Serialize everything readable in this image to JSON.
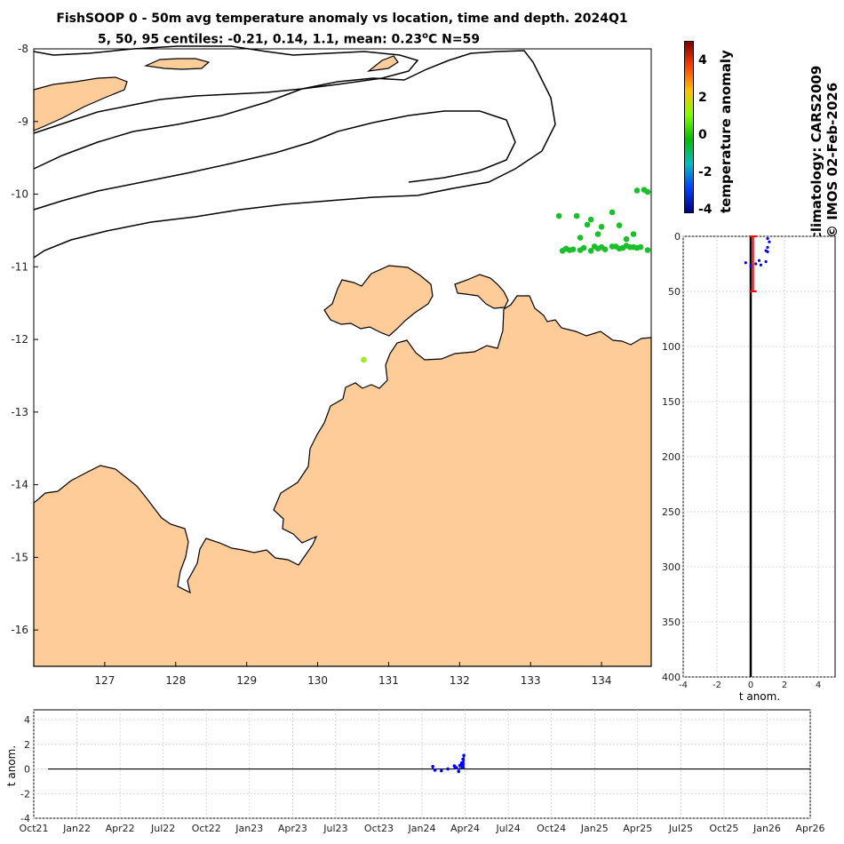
{
  "title": {
    "line1": "FishSOOP 0 - 50m avg temperature anomaly vs location, time and depth. 2024Q1",
    "line2_prefix": "5, 50, 95 centiles: -0.21, 0.14, 1.1, mean: 0.23",
    "line2_degree": "o",
    "line2_suffix": "C N=59"
  },
  "side_text": {
    "climatology": "climatology: CARS2009",
    "credit": "© IMOS 02-Feb-2026"
  },
  "colorbar": {
    "label": "temperature anomaly",
    "ticks": [
      "4",
      "2",
      "0",
      "-2",
      "-4"
    ],
    "colors": [
      "#800000",
      "#ff4000",
      "#ffc000",
      "#80ff00",
      "#00c000",
      "#00c0c0",
      "#0040ff",
      "#000080"
    ]
  },
  "colors": {
    "land": "#fdcc99",
    "coast": "#000000",
    "dots_green": "#19c02a",
    "dot_lime": "#9fe82a",
    "profile_red": "#ff0000",
    "profile_blue": "#0000ff"
  },
  "chart_data": [
    {
      "type": "scatter",
      "name": "map",
      "xlim": [
        126,
        134.7
      ],
      "ylim": [
        -16.5,
        -8
      ],
      "xticks": [
        "127",
        "128",
        "129",
        "130",
        "131",
        "132",
        "133",
        "134"
      ],
      "yticks": [
        "-8",
        "-9",
        "-10",
        "-11",
        "-12",
        "-13",
        "-14",
        "-15",
        "-16"
      ],
      "points_lon": [
        134.5,
        134.6,
        134.65,
        133.4,
        133.65,
        133.85,
        134.15,
        133.8,
        134.0,
        134.25,
        133.95,
        134.45,
        133.7,
        134.35,
        133.5,
        133.9,
        134.15,
        133.75,
        134.55,
        133.55,
        133.85,
        134.05,
        134.25,
        134.4,
        134.5,
        134.65,
        133.6,
        133.95,
        134.2,
        134.35,
        133.45,
        133.7,
        134.0,
        134.3,
        134.45,
        130.65
      ],
      "points_lat": [
        -9.95,
        -9.94,
        -9.97,
        -10.3,
        -10.3,
        -10.35,
        -10.25,
        -10.42,
        -10.45,
        -10.43,
        -10.55,
        -10.55,
        -10.6,
        -10.62,
        -10.75,
        -10.72,
        -10.72,
        -10.74,
        -10.73,
        -10.77,
        -10.78,
        -10.76,
        -10.75,
        -10.73,
        -10.74,
        -10.77,
        -10.76,
        -10.75,
        -10.72,
        -10.71,
        -10.78,
        -10.77,
        -10.73,
        -10.74,
        -10.73,
        -12.28
      ],
      "points_anom": [
        0.1,
        0.1,
        0.1,
        0.2,
        0.2,
        0.2,
        0.2,
        0.2,
        0.2,
        0.2,
        0.2,
        0.2,
        0.2,
        0.2,
        0.2,
        0.2,
        0.2,
        0.2,
        0.2,
        0.2,
        0.2,
        0.2,
        0.2,
        0.2,
        0.2,
        0.2,
        0.2,
        0.2,
        0.2,
        0.2,
        0.2,
        0.2,
        0.2,
        0.2,
        0.2,
        1.1
      ]
    },
    {
      "type": "line",
      "name": "depth_profile",
      "xlabel": "t anom.",
      "xlim": [
        -4,
        5
      ],
      "ylim": [
        400,
        0
      ],
      "xticks": [
        "-4",
        "-2",
        "0",
        "2",
        "4"
      ],
      "yticks": [
        "0",
        "50",
        "100",
        "150",
        "200",
        "250",
        "300",
        "350",
        "400"
      ],
      "red_bar": {
        "x": 0.14,
        "depth_top": 0,
        "depth_bottom": 50
      },
      "blue_x": [
        -0.3,
        0.0,
        0.3,
        0.6,
        0.9,
        1.0,
        1.1,
        1.0,
        0.9,
        1.0,
        0.5
      ],
      "blue_depth": [
        24,
        27,
        25,
        26,
        23,
        2,
        5,
        10,
        13,
        14,
        22
      ]
    },
    {
      "type": "scatter",
      "name": "time_series",
      "ylabel": "t anom.",
      "ylim": [
        -4,
        4.8
      ],
      "yticks": [
        "4",
        "2",
        "0",
        "-2",
        "-4"
      ],
      "xticks": [
        "Oct21",
        "Jan22",
        "Apr22",
        "Jul22",
        "Oct22",
        "Jan23",
        "Apr23",
        "Jul23",
        "Oct23",
        "Jan24",
        "Apr24",
        "Jul24",
        "Oct24",
        "Jan25",
        "Apr25",
        "Jul25",
        "Oct25",
        "Jan26",
        "Apr26"
      ],
      "t": [
        9.25,
        9.3,
        9.45,
        9.6,
        9.75,
        9.8,
        9.85,
        9.88,
        9.92,
        9.95,
        9.97
      ],
      "values": [
        0.2,
        -0.1,
        -0.15,
        0.0,
        0.25,
        0.1,
        -0.2,
        0.3,
        0.5,
        0.8,
        1.1
      ]
    }
  ]
}
